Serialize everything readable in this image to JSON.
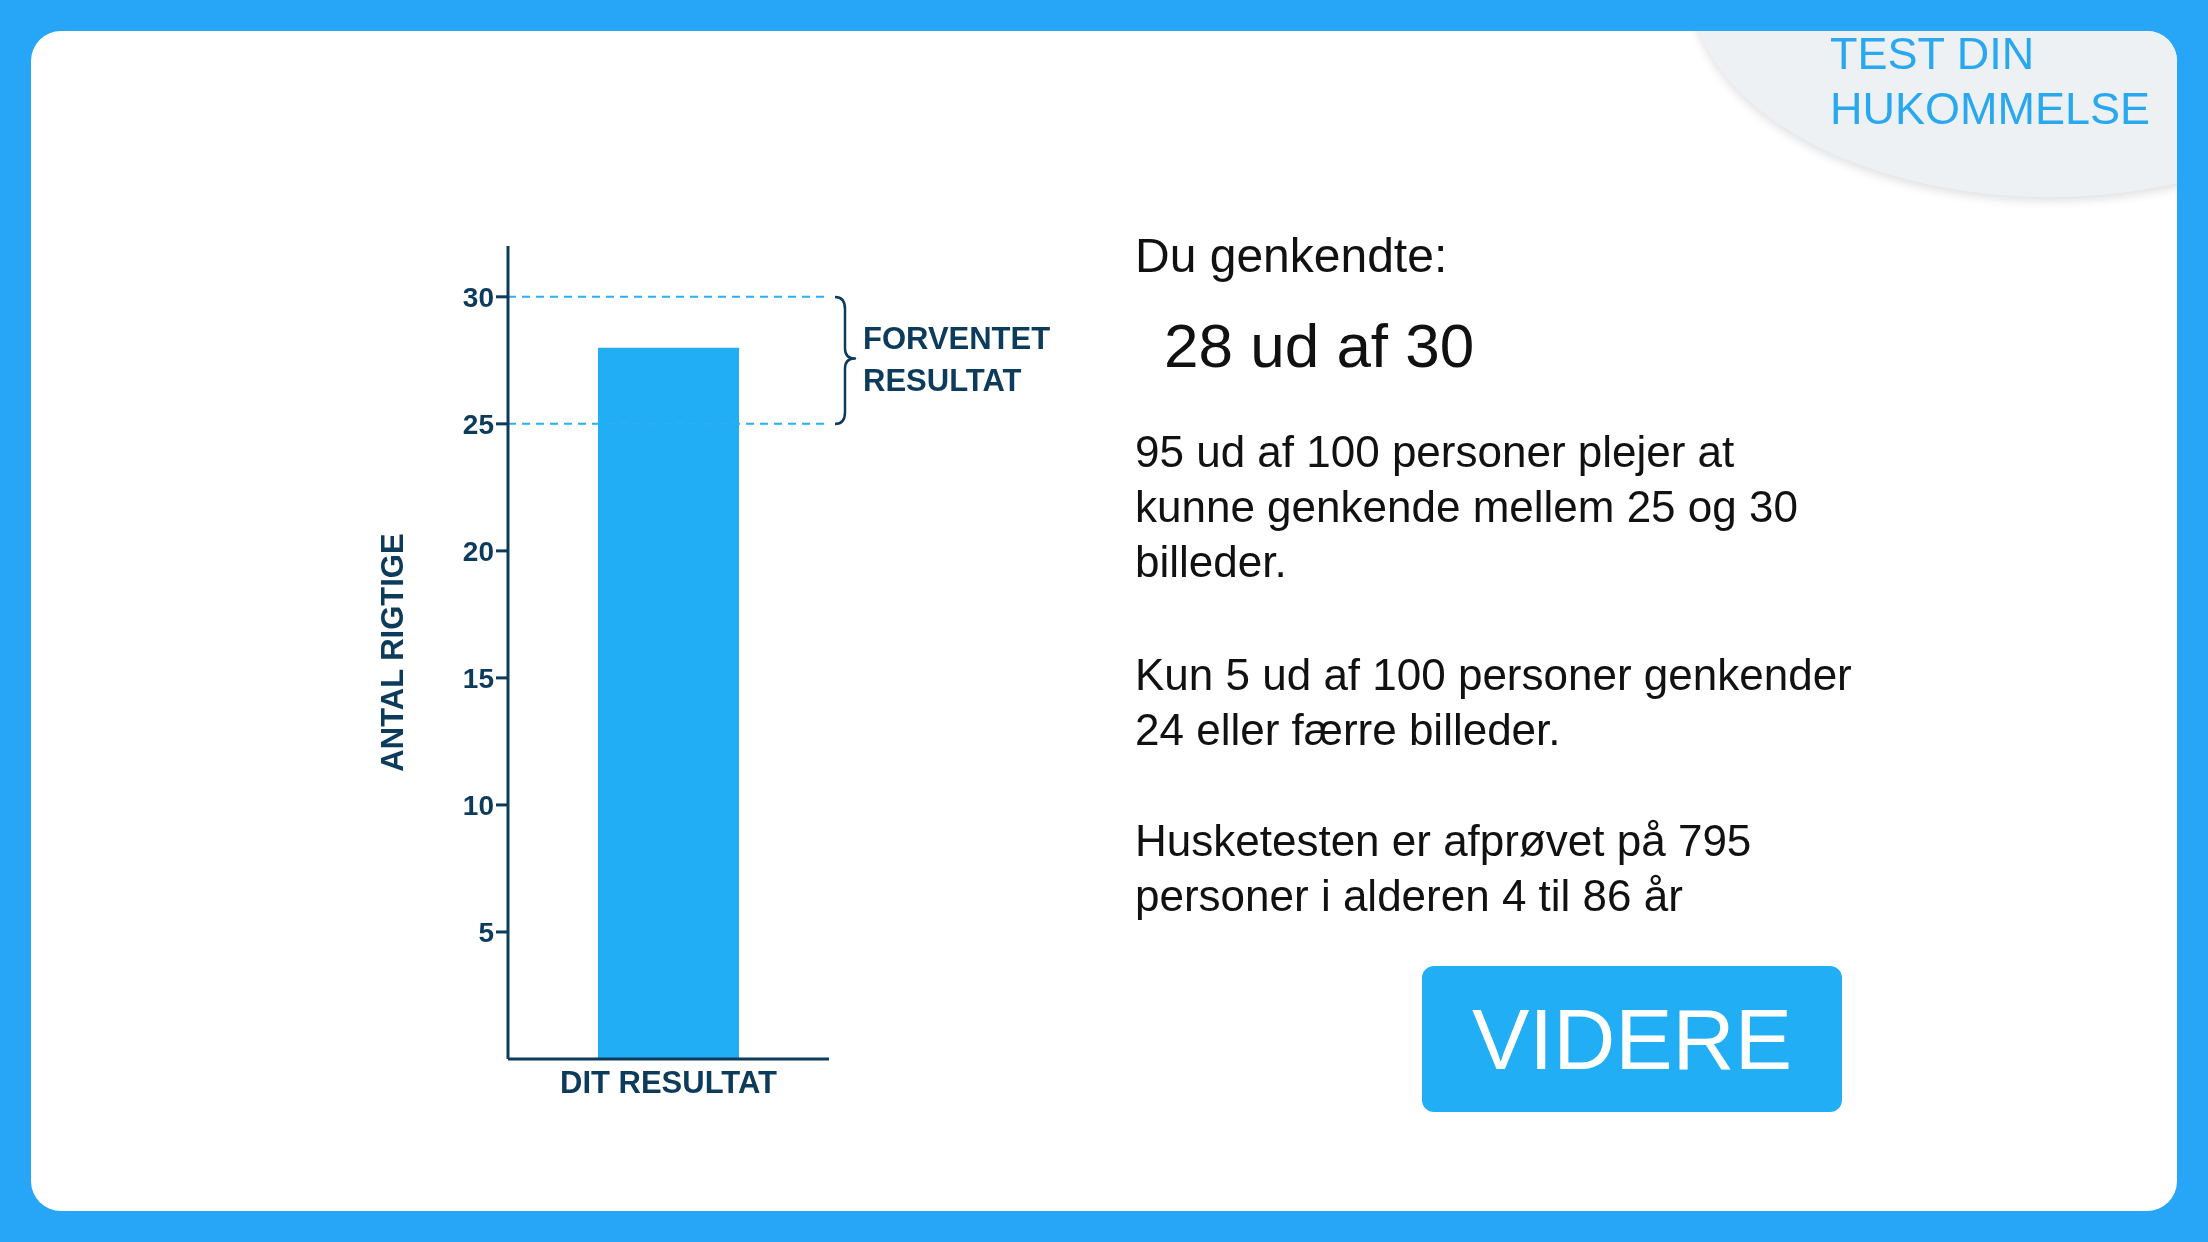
{
  "chart_data": {
    "type": "bar",
    "ylabel": "ANTAL RIGTIGE",
    "categories": [
      "DIT RESULTAT"
    ],
    "values": [
      28
    ],
    "color": "#22aef5",
    "ylim": [
      0,
      32
    ],
    "yticks": [
      5,
      10,
      15,
      20,
      25,
      30
    ],
    "grid": false,
    "legend": false,
    "ref_lines": [
      {
        "axis": "y",
        "value": 30,
        "color": "#29b0f5",
        "line_style": "dashed"
      },
      {
        "axis": "y",
        "value": 25,
        "color": "#29b0f5",
        "line_style": "dashed"
      }
    ],
    "annotations": [
      "FORVENTET RESULTAT",
      "TEST DIN HUKOMMELSE",
      "Du genkendte:",
      "28 ud af 30",
      "95 ud af 100 personer plejer at kunne genkende mellem 25 og 30 billeder.",
      "Kun 5 ud af 100 personer genkender 24 eller færre billeder.",
      "Husketesten er afprøvet på 795 personer i alderen 4 til 86 år",
      "VIDERE"
    ]
  }
}
